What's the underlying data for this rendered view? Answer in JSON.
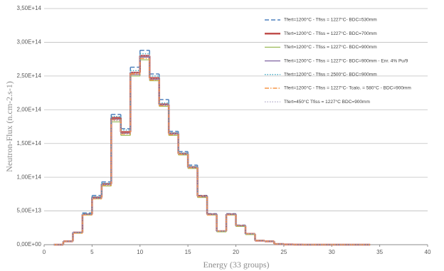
{
  "chart_data": {
    "type": "histogram",
    "xlabel": "Energy (33 groups)",
    "ylabel": "Neutron-Flux (n.cm-2.s-1)",
    "bins": [
      1,
      2,
      3,
      4,
      5,
      6,
      7,
      8,
      9,
      10,
      11,
      12,
      13,
      14,
      15,
      16,
      17,
      18,
      19,
      20,
      21,
      22,
      23,
      24,
      25,
      26,
      27,
      28,
      29,
      30,
      31,
      32,
      33,
      34
    ],
    "xlim": [
      0,
      40
    ],
    "xticks": [
      0,
      5,
      10,
      15,
      20,
      25,
      30,
      35,
      40
    ],
    "ylim": [
      0,
      350000000000000.0
    ],
    "yticks": [
      {
        "value": 0,
        "label": "0,00E+00"
      },
      {
        "value": 50000000000000.0,
        "label": "5,00E+13"
      },
      {
        "value": 100000000000000.0,
        "label": "1,00E+14"
      },
      {
        "value": 150000000000000.0,
        "label": "1,50E+14"
      },
      {
        "value": 200000000000000.0,
        "label": "2,00E+14"
      },
      {
        "value": 250000000000000.0,
        "label": "2,50E+14"
      },
      {
        "value": 300000000000000.0,
        "label": "3,00E+14"
      },
      {
        "value": 350000000000000.0,
        "label": "3,50E+14"
      }
    ],
    "grid": true,
    "legend": "upper right",
    "series": [
      {
        "name": "Tfert=1200°C - Tfiss = 1227°C- BDC=530mm",
        "color": "#4f81bd",
        "dash": "6,3",
        "width": 1.5,
        "values": [
          0,
          5000000000000.0,
          18000000000000.0,
          47000000000000.0,
          73000000000000.0,
          93000000000000.0,
          193000000000000.0,
          172000000000000.0,
          263000000000000.0,
          288000000000000.0,
          253000000000000.0,
          215000000000000.0,
          168000000000000.0,
          138000000000000.0,
          118000000000000.0,
          73000000000000.0,
          46000000000000.0,
          20000000000000.0,
          46000000000000.0,
          29000000000000.0,
          16000000000000.0,
          6000000000000.0,
          5000000000000.0,
          1000000000000.0,
          300000000000.0,
          100000000000.0,
          0,
          0,
          0,
          0,
          0,
          0,
          0
        ]
      },
      {
        "name": "Tfert=1200°C - Tfiss = 1227°C- BDC=700mm",
        "color": "#c0504d",
        "dash": "none",
        "width": 2.5,
        "values": [
          0,
          5000000000000.0,
          18000000000000.0,
          45000000000000.0,
          70000000000000.0,
          90000000000000.0,
          188000000000000.0,
          167000000000000.0,
          255000000000000.0,
          280000000000000.0,
          247000000000000.0,
          208000000000000.0,
          165000000000000.0,
          135000000000000.0,
          115000000000000.0,
          72000000000000.0,
          45000000000000.0,
          20000000000000.0,
          45000000000000.0,
          28000000000000.0,
          16000000000000.0,
          6000000000000.0,
          5000000000000.0,
          1000000000000.0,
          300000000000.0,
          100000000000.0,
          0,
          0,
          0,
          0,
          0,
          0,
          0
        ]
      },
      {
        "name": "Tfert=1200°C - Tfiss = 1227°C- BDC=900mm",
        "color": "#9bbb59",
        "dash": "none",
        "width": 1.2,
        "values": [
          0,
          5000000000000.0,
          17000000000000.0,
          44000000000000.0,
          68000000000000.0,
          87000000000000.0,
          182000000000000.0,
          162000000000000.0,
          250000000000000.0,
          274000000000000.0,
          243000000000000.0,
          205000000000000.0,
          162000000000000.0,
          133000000000000.0,
          113000000000000.0,
          70000000000000.0,
          44000000000000.0,
          19000000000000.0,
          44000000000000.0,
          27000000000000.0,
          15000000000000.0,
          6000000000000.0,
          5000000000000.0,
          1000000000000.0,
          300000000000.0,
          100000000000.0,
          0,
          0,
          0,
          0,
          0,
          0,
          0
        ]
      },
      {
        "name": "Tfert=1200°C - Tfiss = 1227°C- BDC=900mm - Enr. 4% Pu/9",
        "color": "#8064a2",
        "dash": "none",
        "width": 1.2,
        "values": [
          0,
          5000000000000.0,
          18000000000000.0,
          45000000000000.0,
          69000000000000.0,
          89000000000000.0,
          186000000000000.0,
          165000000000000.0,
          252000000000000.0,
          278000000000000.0,
          245000000000000.0,
          207000000000000.0,
          164000000000000.0,
          134000000000000.0,
          114000000000000.0,
          71000000000000.0,
          45000000000000.0,
          20000000000000.0,
          45000000000000.0,
          28000000000000.0,
          16000000000000.0,
          6000000000000.0,
          5000000000000.0,
          1000000000000.0,
          300000000000.0,
          100000000000.0,
          0,
          0,
          0,
          0,
          0,
          0,
          0
        ]
      },
      {
        "name": "Tfert=1200°C - Tfiss = 2500°C- BDC=900mm",
        "color": "#4bacc6",
        "dash": "1.5,2",
        "width": 1.5,
        "values": [
          0,
          5000000000000.0,
          18000000000000.0,
          46000000000000.0,
          71000000000000.0,
          91000000000000.0,
          190000000000000.0,
          170000000000000.0,
          258000000000000.0,
          283000000000000.0,
          250000000000000.0,
          210000000000000.0,
          166000000000000.0,
          136000000000000.0,
          116000000000000.0,
          72000000000000.0,
          45000000000000.0,
          20000000000000.0,
          45000000000000.0,
          28000000000000.0,
          16000000000000.0,
          6000000000000.0,
          5000000000000.0,
          1000000000000.0,
          300000000000.0,
          100000000000.0,
          0,
          0,
          0,
          0,
          0,
          0,
          0
        ]
      },
      {
        "name": "Tfert=1200°C - Tfiss = 1227°C- Tcalo. = 580°C - BDC=900mm",
        "color": "#f79646",
        "dash": "6,2,1.5,2",
        "width": 1.5,
        "values": [
          0,
          5000000000000.0,
          17000000000000.0,
          44000000000000.0,
          68000000000000.0,
          88000000000000.0,
          185000000000000.0,
          164000000000000.0,
          253000000000000.0,
          276000000000000.0,
          244000000000000.0,
          206000000000000.0,
          163000000000000.0,
          134000000000000.0,
          114000000000000.0,
          71000000000000.0,
          44000000000000.0,
          20000000000000.0,
          44000000000000.0,
          28000000000000.0,
          16000000000000.0,
          6000000000000.0,
          5000000000000.0,
          1000000000000.0,
          300000000000.0,
          100000000000.0,
          0,
          0,
          0,
          0,
          0,
          0,
          0
        ]
      },
      {
        "name": "Tfert=450°C   Tfiss = 1227°C   BDC=900mm",
        "color": "#a29ac0",
        "dash": "1.5,2",
        "width": 1.2,
        "values": [
          0,
          5000000000000.0,
          18000000000000.0,
          45000000000000.0,
          69000000000000.0,
          89000000000000.0,
          184000000000000.0,
          165000000000000.0,
          255000000000000.0,
          280000000000000.0,
          246000000000000.0,
          208000000000000.0,
          165000000000000.0,
          135000000000000.0,
          115000000000000.0,
          72000000000000.0,
          45000000000000.0,
          20000000000000.0,
          45000000000000.0,
          28000000000000.0,
          16000000000000.0,
          6000000000000.0,
          5000000000000.0,
          1000000000000.0,
          300000000000.0,
          100000000000.0,
          0,
          0,
          0,
          0,
          0,
          0,
          0
        ]
      }
    ]
  }
}
